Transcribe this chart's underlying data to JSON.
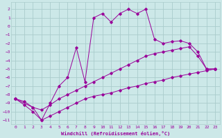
{
  "xlabel": "Windchill (Refroidissement éolien,°C)",
  "bg_color": "#cce8e8",
  "grid_color": "#aacccc",
  "line_color": "#990099",
  "xlim": [
    -0.5,
    23.5
  ],
  "ylim": [
    -11.5,
    2.8
  ],
  "yticks": [
    2,
    1,
    0,
    -1,
    -2,
    -3,
    -4,
    -5,
    -6,
    -7,
    -8,
    -9,
    -10,
    -11
  ],
  "xticks": [
    0,
    1,
    2,
    3,
    4,
    5,
    6,
    7,
    8,
    9,
    10,
    11,
    12,
    13,
    14,
    15,
    16,
    17,
    18,
    19,
    20,
    21,
    22,
    23
  ],
  "line1_x": [
    0,
    1,
    2,
    3,
    4,
    5,
    6,
    7,
    8,
    9,
    10,
    11,
    12,
    13,
    14,
    15,
    16,
    17,
    18,
    19,
    20,
    21,
    22,
    23
  ],
  "line1_y": [
    -8.5,
    -9.2,
    -10.0,
    -11.0,
    -10.5,
    -10.0,
    -9.5,
    -9.0,
    -8.5,
    -8.2,
    -8.0,
    -7.8,
    -7.5,
    -7.2,
    -7.0,
    -6.7,
    -6.5,
    -6.3,
    -6.0,
    -5.8,
    -5.6,
    -5.4,
    -5.2,
    -5.0
  ],
  "line2_x": [
    0,
    1,
    2,
    3,
    4,
    5,
    6,
    7,
    8,
    9,
    10,
    11,
    12,
    13,
    14,
    15,
    16,
    17,
    18,
    19,
    20,
    21,
    22,
    23
  ],
  "line2_y": [
    -8.5,
    -8.8,
    -9.5,
    -9.8,
    -9.2,
    -8.5,
    -8.0,
    -7.5,
    -7.0,
    -6.5,
    -6.0,
    -5.5,
    -5.0,
    -4.5,
    -4.0,
    -3.5,
    -3.2,
    -3.0,
    -2.8,
    -2.6,
    -2.4,
    -3.5,
    -5.0,
    -5.0
  ],
  "line3_x": [
    0,
    2,
    3,
    4,
    5,
    6,
    7,
    8,
    9,
    10,
    11,
    12,
    13,
    14,
    15,
    16,
    17,
    18,
    19,
    20,
    21,
    22,
    23
  ],
  "line3_y": [
    -8.5,
    -9.5,
    -11.0,
    -9.0,
    -7.0,
    -6.0,
    -2.5,
    -6.5,
    1.0,
    1.5,
    0.5,
    1.5,
    2.0,
    1.5,
    2.0,
    -1.5,
    -2.0,
    -1.8,
    -1.7,
    -2.0,
    -3.0,
    -5.0,
    -5.0
  ]
}
